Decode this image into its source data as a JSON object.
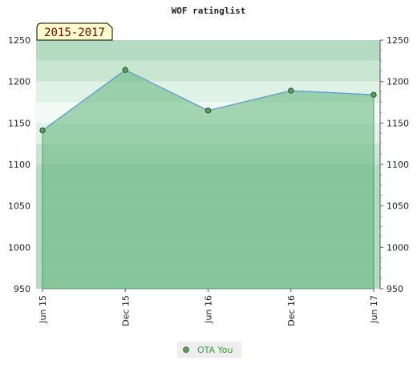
{
  "chart_data": {
    "type": "area",
    "title": "WOF ratinglist",
    "period_label": "2015-2017",
    "xlabel": "",
    "ylabel": "",
    "ylim": [
      950,
      1250
    ],
    "y_ticks": [
      950,
      1000,
      1050,
      1100,
      1150,
      1200,
      1250
    ],
    "x_ticks": [
      "Jun 15",
      "Dec 15",
      "Jun 16",
      "Dec 16",
      "Jun 17"
    ],
    "series": [
      {
        "name": "OTA You",
        "x": [
          "Jun 15",
          "Dec 15",
          "Jun 16",
          "Dec 16",
          "Jun 17"
        ],
        "values": [
          1141,
          1214,
          1165,
          1189,
          1184
        ]
      }
    ],
    "legend_position": "bottom-center",
    "colors": {
      "line": "#5a9fd4",
      "marker": "#5aa05a",
      "fill": "#7dc394",
      "legend_bg": "#eeeeee",
      "period_bg": "#ffffcc",
      "period_text": "#7a0000"
    }
  }
}
